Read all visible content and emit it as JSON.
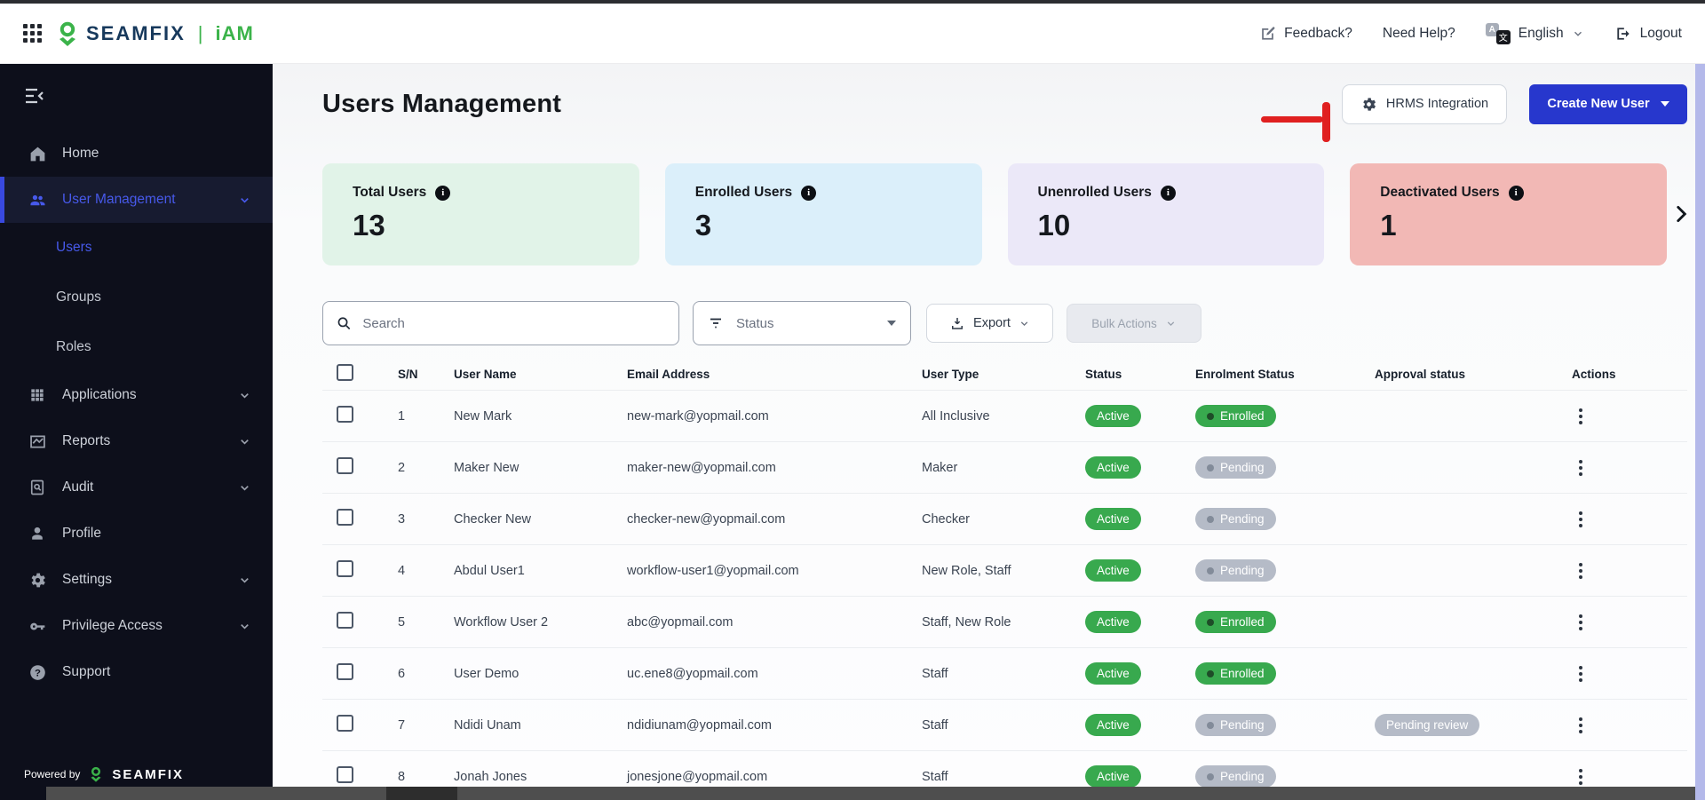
{
  "header": {
    "brand": "SEAMFIX",
    "product": "iAM",
    "feedback": "Feedback?",
    "need_help": "Need Help?",
    "language": "English",
    "logout": "Logout"
  },
  "sidebar": {
    "items": [
      {
        "label": "Home",
        "icon": "home-icon",
        "chevron": false,
        "active": false
      },
      {
        "label": "User Management",
        "icon": "user-management-icon",
        "chevron": true,
        "active": true,
        "children": [
          {
            "label": "Users",
            "active": true
          },
          {
            "label": "Groups",
            "active": false
          },
          {
            "label": "Roles",
            "active": false
          }
        ]
      },
      {
        "label": "Applications",
        "icon": "applications-grid-icon",
        "chevron": true,
        "active": false
      },
      {
        "label": "Reports",
        "icon": "reports-icon",
        "chevron": true,
        "active": false
      },
      {
        "label": "Audit",
        "icon": "audit-icon",
        "chevron": true,
        "active": false
      },
      {
        "label": "Profile",
        "icon": "profile-icon",
        "chevron": false,
        "active": false
      },
      {
        "label": "Settings",
        "icon": "settings-gear-icon",
        "chevron": true,
        "active": false
      },
      {
        "label": "Privilege Access",
        "icon": "key-icon",
        "chevron": true,
        "active": false
      },
      {
        "label": "Support",
        "icon": "support-question-icon",
        "chevron": false,
        "active": false
      }
    ],
    "powered_by_label": "Powered by",
    "powered_by_brand": "SEAMFIX"
  },
  "page": {
    "title": "Users Management",
    "hrms_button": "HRMS Integration",
    "create_user_button": "Create New User"
  },
  "stats": [
    {
      "label": "Total Users",
      "value": "13",
      "bg": "#e1f3e8"
    },
    {
      "label": "Enrolled Users",
      "value": "3",
      "bg": "#dbeffa"
    },
    {
      "label": "Unenrolled Users",
      "value": "10",
      "bg": "#ebe8f8"
    },
    {
      "label": "Deactivated Users",
      "value": "1",
      "bg": "#f2b8b5"
    }
  ],
  "filters": {
    "search_placeholder": "Search",
    "status_label": "Status",
    "export_label": "Export",
    "bulk_actions_label": "Bulk Actions"
  },
  "table": {
    "columns": [
      "S/N",
      "User Name",
      "Email Address",
      "User Type",
      "Status",
      "Enrolment Status",
      "Approval status",
      "Actions"
    ],
    "rows": [
      {
        "sn": "1",
        "name": "New Mark",
        "email": "new-mark@yopmail.com",
        "type": "All Inclusive",
        "status": "Active",
        "enrolment": "Enrolled",
        "approval": ""
      },
      {
        "sn": "2",
        "name": "Maker New",
        "email": "maker-new@yopmail.com",
        "type": "Maker",
        "status": "Active",
        "enrolment": "Pending",
        "approval": ""
      },
      {
        "sn": "3",
        "name": "Checker New",
        "email": "checker-new@yopmail.com",
        "type": "Checker",
        "status": "Active",
        "enrolment": "Pending",
        "approval": ""
      },
      {
        "sn": "4",
        "name": "Abdul User1",
        "email": "workflow-user1@yopmail.com",
        "type": "New Role, Staff",
        "status": "Active",
        "enrolment": "Pending",
        "approval": ""
      },
      {
        "sn": "5",
        "name": "Workflow User 2",
        "email": "abc@yopmail.com",
        "type": "Staff, New Role",
        "status": "Active",
        "enrolment": "Enrolled",
        "approval": ""
      },
      {
        "sn": "6",
        "name": "User Demo",
        "email": "uc.ene8@yopmail.com",
        "type": "Staff",
        "status": "Active",
        "enrolment": "Enrolled",
        "approval": ""
      },
      {
        "sn": "7",
        "name": "Ndidi Unam",
        "email": "ndidiunam@yopmail.com",
        "type": "Staff",
        "status": "Active",
        "enrolment": "Pending",
        "approval": "Pending review"
      },
      {
        "sn": "8",
        "name": "Jonah Jones",
        "email": "jonesjone@yopmail.com",
        "type": "Staff",
        "status": "Active",
        "enrolment": "Pending",
        "approval": ""
      }
    ]
  },
  "colors": {
    "brand_navy": "#17395c",
    "brand_green": "#3bb34a",
    "primary_button": "#2737cd",
    "sidebar_accent": "#4759ea",
    "pill_green": "#38a94e",
    "pill_gray": "#b5bbc7",
    "annotation_red": "#e02020"
  }
}
